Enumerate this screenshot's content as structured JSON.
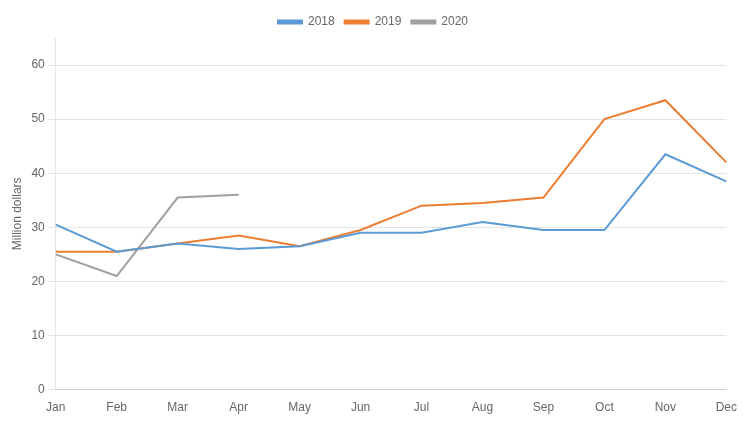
{
  "chart_data": {
    "type": "line",
    "ylabel": "Million dollars",
    "categories": [
      "Jan",
      "Feb",
      "Mar",
      "Apr",
      "May",
      "Jun",
      "Jul",
      "Aug",
      "Sep",
      "Oct",
      "Nov",
      "Dec"
    ],
    "series": [
      {
        "name": "2018",
        "color": "#5B9BD5",
        "values": [
          30.5,
          25.5,
          27.0,
          26.0,
          26.5,
          29.0,
          29.0,
          31.0,
          29.5,
          29.5,
          43.5,
          38.5
        ]
      },
      {
        "name": "2019",
        "color": "#ED7D31",
        "values": [
          25.5,
          25.5,
          27.0,
          28.5,
          26.5,
          29.5,
          34.0,
          34.5,
          35.5,
          50.0,
          53.5,
          42.0
        ]
      },
      {
        "name": "2020",
        "color": "#A0A0A0",
        "values": [
          25.0,
          21.0,
          35.5,
          36.0,
          null,
          null,
          null,
          null,
          null,
          null,
          null,
          null
        ]
      }
    ],
    "ylim": [
      0,
      65
    ],
    "yticks": [
      0,
      10,
      20,
      30,
      40,
      50,
      60
    ],
    "grid": true,
    "legend": "top"
  }
}
